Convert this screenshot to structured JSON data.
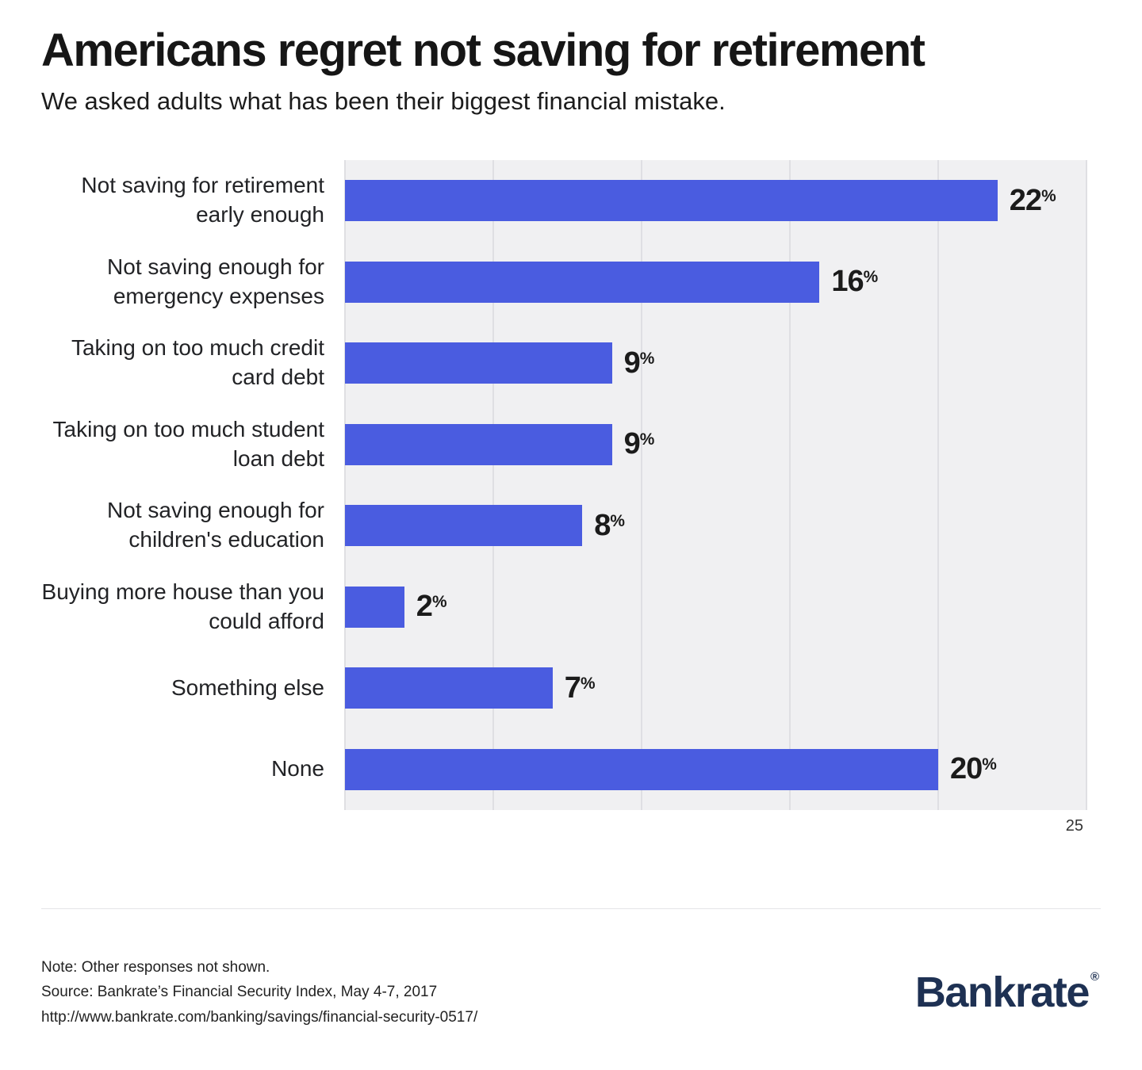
{
  "chart_data": {
    "type": "bar",
    "orientation": "horizontal",
    "title": "Americans regret not saving for retirement",
    "subtitle": "We asked adults what has been their biggest financial mistake.",
    "categories": [
      "Not saving for retirement early enough",
      "Not saving enough for emergency expenses",
      "Taking on too much credit card debt",
      "Taking on too much student loan debt",
      "Not saving enough for children's education",
      "Buying more house than you could afford",
      "Something else",
      "None"
    ],
    "values": [
      22,
      16,
      9,
      9,
      8,
      2,
      7,
      20
    ],
    "unit": "%",
    "xlim": [
      0,
      25
    ],
    "x_ticks": [
      0,
      5,
      10,
      15,
      20,
      25
    ],
    "x_axis_max_label": "25",
    "grid": true,
    "legend": "none",
    "bar_color": "#4a5ce0",
    "plot_background": "#f0f0f2"
  },
  "footer": {
    "note": "Note: Other responses not shown.",
    "source": "Source: Bankrate’s Financial Security Index, May 4-7, 2017",
    "url": "http://www.bankrate.com/banking/savings/financial-security-0517/",
    "brand": "Bankrate",
    "brand_registered": "®"
  }
}
